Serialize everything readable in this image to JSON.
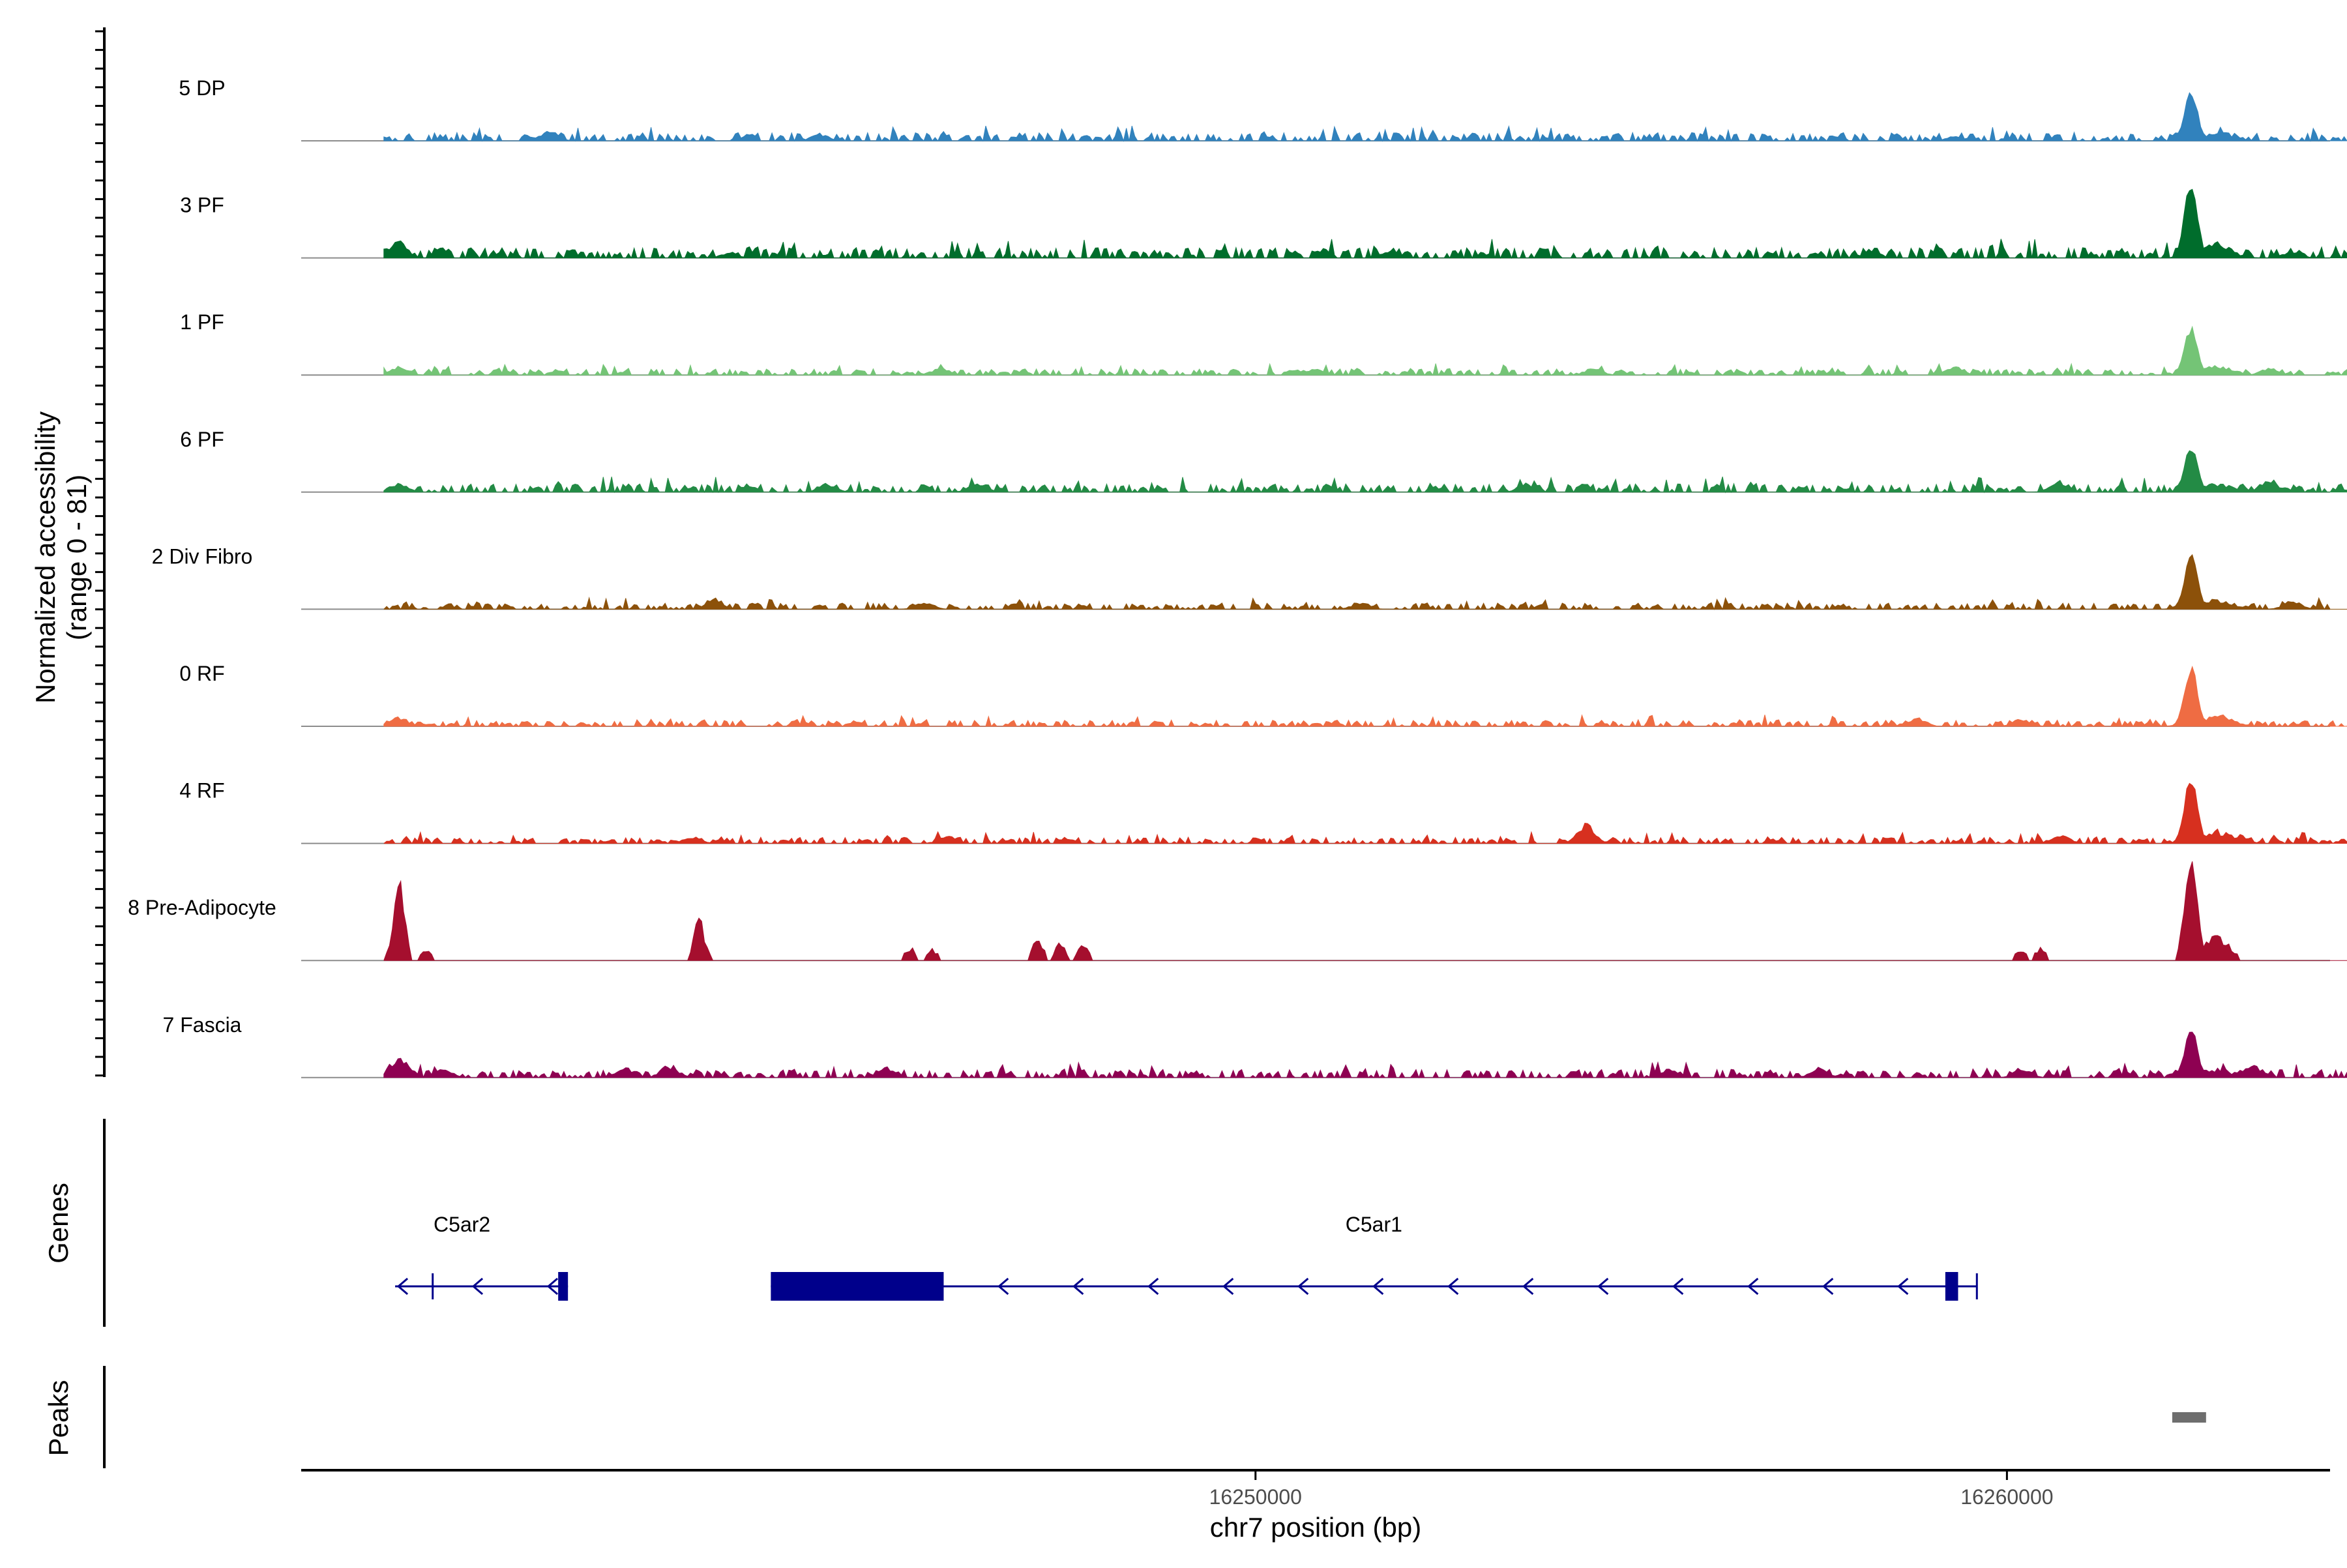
{
  "chart_data": {
    "type": "area",
    "title": "",
    "xlabel": "chr7 position (bp)",
    "ylabel_line1": "Normalized accessibility",
    "ylabel_line2": "(range 0 - 81)",
    "y_range": [
      0,
      81
    ],
    "x_range": [
      16237300,
      16264300
    ],
    "x_ticks": [
      16250000,
      16260000
    ],
    "x_tick_labels": [
      "16250000",
      "16260000"
    ],
    "tracks": [
      {
        "name": "5 DP",
        "color": "#3182bd",
        "peak_height": 40,
        "baseline": 4,
        "bumps": [
          [
            16240600,
            7
          ],
          [
            16244200,
            5
          ],
          [
            16259300,
            3
          ],
          [
            16262800,
            5
          ]
        ]
      },
      {
        "name": "3 PF",
        "color": "#006d2c",
        "peak_height": 60,
        "baseline": 5,
        "bumps": [
          [
            16238600,
            12
          ],
          [
            16243000,
            4
          ],
          [
            16251800,
            5
          ],
          [
            16258200,
            5
          ],
          [
            16263800,
            5
          ]
        ]
      },
      {
        "name": "1 PF",
        "color": "#74c476",
        "peak_height": 38,
        "baseline": 3,
        "bumps": [
          [
            16238600,
            6
          ],
          [
            16245800,
            5
          ],
          [
            16250800,
            4
          ],
          [
            16254500,
            5
          ],
          [
            16259300,
            6
          ],
          [
            16263500,
            5
          ]
        ]
      },
      {
        "name": "6 PF",
        "color": "#238b45",
        "peak_height": 35,
        "baseline": 4,
        "bumps": [
          [
            16238600,
            7
          ],
          [
            16244300,
            6
          ],
          [
            16246300,
            7
          ],
          [
            16253600,
            6
          ],
          [
            16260700,
            8
          ],
          [
            16263500,
            8
          ],
          [
            16264700,
            7
          ]
        ]
      },
      {
        "name": "2 Div Fibro",
        "color": "#8c510a",
        "peak_height": 42,
        "baseline": 3,
        "bumps": [
          [
            16242800,
            8
          ],
          [
            16245600,
            5
          ],
          [
            16251400,
            5
          ],
          [
            16262400,
            6
          ],
          [
            16263800,
            6
          ]
        ]
      },
      {
        "name": "0 RF",
        "color": "#ef6c43",
        "peak_height": 48,
        "baseline": 3,
        "bumps": [
          [
            16238600,
            7
          ],
          [
            16258800,
            6
          ],
          [
            16260200,
            5
          ],
          [
            16262400,
            4
          ]
        ]
      },
      {
        "name": "4 RF",
        "color": "#d7301f",
        "peak_height": 52,
        "baseline": 3,
        "bumps": [
          [
            16242500,
            5
          ],
          [
            16245900,
            6
          ],
          [
            16254400,
            14
          ],
          [
            16260700,
            6
          ],
          [
            16263100,
            6
          ]
        ]
      },
      {
        "name": "8 Pre-Adipocyte",
        "color": "#a50f2e",
        "peak_height": 78,
        "baseline": 0,
        "sparse": true,
        "bumps": [
          [
            16238600,
            55
          ],
          [
            16238950,
            9
          ],
          [
            16242600,
            28
          ],
          [
            16245400,
            10
          ],
          [
            16245700,
            8
          ],
          [
            16247100,
            14
          ],
          [
            16247400,
            12
          ],
          [
            16247700,
            11
          ],
          [
            16260200,
            9
          ],
          [
            16260450,
            9
          ],
          [
            16262750,
            10
          ],
          [
            16262950,
            8
          ]
        ]
      },
      {
        "name": "7 Fascia",
        "color": "#8e0152",
        "peak_height": 38,
        "baseline": 4,
        "bumps": [
          [
            16238600,
            16
          ],
          [
            16239200,
            6
          ],
          [
            16241600,
            8
          ],
          [
            16242200,
            9
          ],
          [
            16245100,
            7
          ],
          [
            16255500,
            6
          ],
          [
            16257500,
            7
          ],
          [
            16260200,
            6
          ],
          [
            16263300,
            8
          ]
        ]
      }
    ],
    "main_peak_center": 16262450,
    "genes": [
      {
        "name": "C5ar2",
        "strand": "-",
        "start": 16238550,
        "end": 16240850,
        "exons": [
          [
            16240720,
            16240850
          ]
        ],
        "marks": [
          16239050
        ]
      },
      {
        "name": "C5ar1",
        "strand": "-",
        "start": 16243550,
        "end": 16259600,
        "exons": [
          [
            16243550,
            16245850
          ],
          [
            16259180,
            16259350
          ]
        ],
        "marks": [
          16259600
        ]
      }
    ],
    "peaks": [
      {
        "start": 16262200,
        "end": 16262650,
        "color": "#6e6e6e"
      }
    ],
    "panel_labels": {
      "genes": "Genes",
      "peaks": "Peaks"
    }
  }
}
